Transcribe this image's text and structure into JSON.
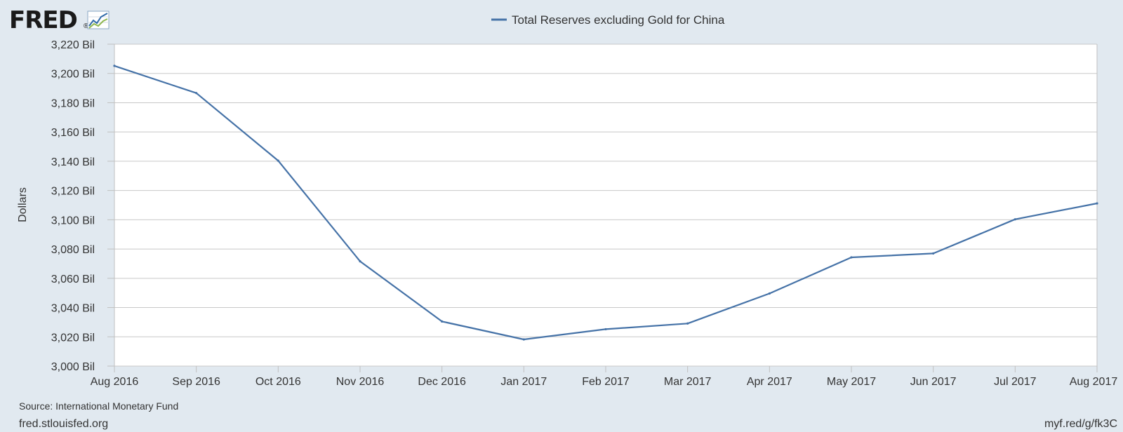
{
  "branding": {
    "logo_text": "FRED",
    "logo_icon": "line-chart-icon",
    "registered_mark": "®"
  },
  "footer": {
    "source": "Source: International Monetary Fund",
    "site": "fred.stlouisfed.org",
    "short_link": "myf.red/g/fk3C"
  },
  "colors": {
    "background": "#e1e9f0",
    "plot_background": "#ffffff",
    "series_line": "#4572a7",
    "grid": "#c8c8c8",
    "text": "#333333"
  },
  "chart_data": {
    "type": "line",
    "title": "",
    "xlabel": "",
    "ylabel": "Dollars",
    "legend": {
      "placement": "top-center",
      "entries": [
        "Total Reserves excluding Gold for China"
      ]
    },
    "grid": true,
    "ylim": [
      3000,
      3220
    ],
    "y_ticks": [
      3000,
      3020,
      3040,
      3060,
      3080,
      3100,
      3120,
      3140,
      3160,
      3180,
      3200,
      3220
    ],
    "y_tick_labels": [
      "3,000 Bil",
      "3,020 Bil",
      "3,040 Bil",
      "3,060 Bil",
      "3,080 Bil",
      "3,100 Bil",
      "3,120 Bil",
      "3,140 Bil",
      "3,160 Bil",
      "3,180 Bil",
      "3,200 Bil",
      "3,220 Bil"
    ],
    "categories": [
      "Aug 2016",
      "Sep 2016",
      "Oct 2016",
      "Nov 2016",
      "Dec 2016",
      "Jan 2017",
      "Feb 2017",
      "Mar 2017",
      "Apr 2017",
      "May 2017",
      "Jun 2017",
      "Jul 2017",
      "Aug 2017"
    ],
    "series": [
      {
        "name": "Total Reserves excluding Gold for China",
        "values": [
          3205.2,
          3186.6,
          3140.4,
          3071.6,
          3030.5,
          3018.2,
          3025.2,
          3029.1,
          3049.6,
          3074.3,
          3077.0,
          3100.3,
          3111.2
        ]
      }
    ]
  }
}
